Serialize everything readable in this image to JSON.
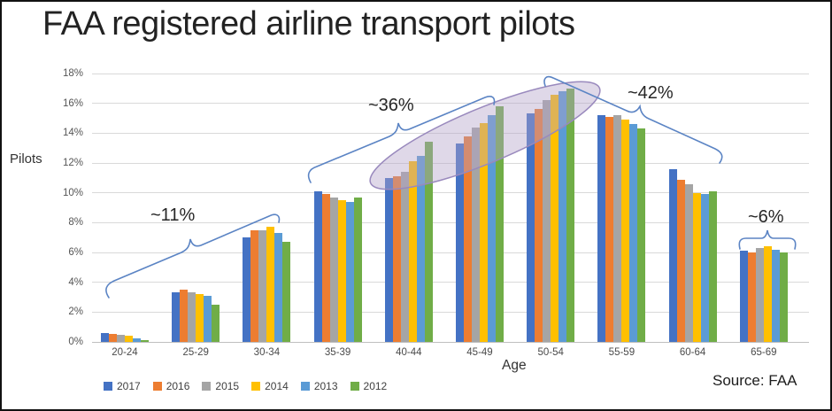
{
  "title": "FAA registered airline transport pilots",
  "source": "Source: FAA",
  "styles": {
    "bracket_color": "#5B84C4",
    "ellipse_fill": "#B3A2C7",
    "ellipse_fill_opacity": 0.42,
    "ellipse_outline": "#9989BD",
    "gridline_color": "#D9D9D9",
    "axis_line_color": "#BFBFBF"
  },
  "chart_data": {
    "type": "bar",
    "title": "FAA registered airline transport pilots",
    "xlabel": "Age",
    "ylabel": "Pilots",
    "ylim": [
      0,
      18
    ],
    "grid": true,
    "legend_position": "bottom-left",
    "y_ticks": [
      "0%",
      "2%",
      "4%",
      "6%",
      "8%",
      "10%",
      "12%",
      "14%",
      "16%",
      "18%"
    ],
    "categories": [
      "20-24",
      "25-29",
      "30-34",
      "35-39",
      "40-44",
      "45-49",
      "50-54",
      "55-59",
      "60-64",
      "65-69"
    ],
    "series": [
      {
        "name": "2017",
        "color": "#4472C4",
        "values": [
          0.6,
          3.3,
          7.0,
          10.1,
          11.0,
          13.3,
          15.3,
          15.2,
          11.6,
          6.1
        ]
      },
      {
        "name": "2016",
        "color": "#ED7D31",
        "values": [
          0.55,
          3.5,
          7.5,
          9.9,
          11.1,
          13.8,
          15.6,
          15.1,
          10.9,
          6.0
        ]
      },
      {
        "name": "2015",
        "color": "#A5A5A5",
        "values": [
          0.45,
          3.3,
          7.5,
          9.7,
          11.4,
          14.4,
          16.2,
          15.2,
          10.6,
          6.3
        ]
      },
      {
        "name": "2014",
        "color": "#FFC000",
        "values": [
          0.4,
          3.2,
          7.7,
          9.5,
          12.1,
          14.7,
          16.6,
          14.9,
          10.0,
          6.4
        ]
      },
      {
        "name": "2013",
        "color": "#5B9BD5",
        "values": [
          0.25,
          3.1,
          7.3,
          9.4,
          12.5,
          15.2,
          16.8,
          14.6,
          9.9,
          6.2
        ]
      },
      {
        "name": "2012",
        "color": "#70AD47",
        "values": [
          0.1,
          2.5,
          6.7,
          9.7,
          13.4,
          15.8,
          17.0,
          14.3,
          10.1,
          6.0
        ]
      }
    ],
    "annotations": [
      {
        "label": "~11%",
        "covers": "20-24 to 30-34"
      },
      {
        "label": "~36%",
        "covers": "35-39 to 45-49"
      },
      {
        "label": "~42%",
        "covers": "50-54 to 60-64"
      },
      {
        "label": "~6%",
        "covers": "65-69"
      }
    ],
    "highlight": {
      "shape": "ellipse",
      "covers": "rising bar tops from 40-44 to 50-54"
    }
  }
}
